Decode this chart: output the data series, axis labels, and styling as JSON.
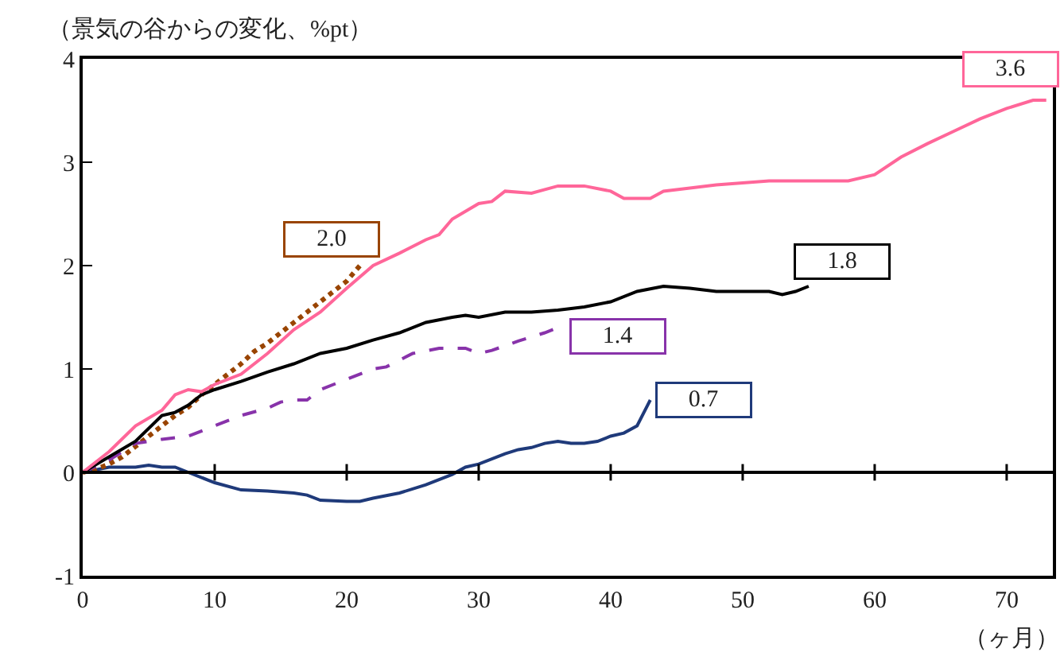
{
  "chart_data": {
    "type": "line",
    "ylabel": "（景気の谷からの変化、%pt）",
    "xlabel": "（ヶ月）",
    "xlim": [
      0,
      73.5
    ],
    "xticks": [
      0,
      10,
      20,
      30,
      40,
      50,
      60,
      70
    ],
    "ylim": [
      -1,
      4
    ],
    "yticks": [
      -1,
      0,
      1,
      2,
      3,
      4
    ],
    "ref_lines": [
      {
        "axis": "y",
        "value": 0,
        "color": "#000000"
      }
    ],
    "series": [
      {
        "color": "#ff6699",
        "line_style": "solid",
        "x": [
          0,
          2,
          4,
          6,
          7,
          8,
          9,
          10,
          12,
          14,
          16,
          18,
          20,
          22,
          24,
          26,
          27,
          28,
          30,
          31,
          32,
          34,
          36,
          38,
          40,
          41,
          43,
          44,
          46,
          48,
          50,
          52,
          54,
          56,
          58,
          60,
          62,
          64,
          66,
          68,
          70,
          72,
          73
        ],
        "values": [
          0,
          0.2,
          0.45,
          0.6,
          0.75,
          0.8,
          0.78,
          0.85,
          0.95,
          1.15,
          1.38,
          1.55,
          1.78,
          2.0,
          2.12,
          2.25,
          2.3,
          2.45,
          2.6,
          2.62,
          2.72,
          2.7,
          2.77,
          2.77,
          2.72,
          2.65,
          2.65,
          2.72,
          2.75,
          2.78,
          2.8,
          2.82,
          2.82,
          2.82,
          2.82,
          2.88,
          3.05,
          3.18,
          3.3,
          3.42,
          3.52,
          3.6,
          3.6
        ]
      },
      {
        "color": "#000000",
        "line_style": "solid",
        "x": [
          0,
          2,
          4,
          6,
          7,
          8,
          9,
          10,
          12,
          14,
          16,
          18,
          20,
          22,
          24,
          26,
          28,
          29,
          30,
          32,
          34,
          36,
          38,
          40,
          42,
          44,
          46,
          48,
          50,
          52,
          53,
          54,
          55
        ],
        "values": [
          0,
          0.15,
          0.3,
          0.55,
          0.58,
          0.65,
          0.75,
          0.8,
          0.88,
          0.97,
          1.05,
          1.15,
          1.2,
          1.28,
          1.35,
          1.45,
          1.5,
          1.52,
          1.5,
          1.55,
          1.55,
          1.57,
          1.6,
          1.65,
          1.75,
          1.8,
          1.78,
          1.75,
          1.75,
          1.75,
          1.72,
          1.75,
          1.8
        ]
      },
      {
        "color": "#8833aa",
        "line_style": "dashed",
        "x": [
          0,
          2,
          4,
          5,
          6,
          8,
          10,
          12,
          14,
          15,
          16,
          17,
          18,
          20,
          22,
          23,
          25,
          27,
          28,
          29,
          30,
          31,
          33,
          35,
          36
        ],
        "values": [
          0,
          0.12,
          0.28,
          0.3,
          0.32,
          0.35,
          0.45,
          0.55,
          0.62,
          0.68,
          0.7,
          0.7,
          0.8,
          0.9,
          1.0,
          1.02,
          1.15,
          1.2,
          1.2,
          1.2,
          1.15,
          1.18,
          1.27,
          1.35,
          1.4
        ]
      },
      {
        "color": "#994400",
        "line_style": "dotted",
        "x": [
          0,
          1,
          2,
          3,
          4,
          5,
          6,
          7,
          8,
          9,
          10,
          11,
          12,
          13,
          14,
          15,
          16,
          17,
          18,
          19,
          20,
          21
        ],
        "values": [
          0,
          0.03,
          0.08,
          0.15,
          0.25,
          0.35,
          0.45,
          0.55,
          0.63,
          0.75,
          0.85,
          0.95,
          1.05,
          1.17,
          1.25,
          1.35,
          1.45,
          1.55,
          1.65,
          1.75,
          1.85,
          2.0
        ]
      },
      {
        "color": "#1f3a7a",
        "line_style": "solid",
        "x": [
          0,
          2,
          4,
          5,
          6,
          7,
          8,
          10,
          12,
          14,
          16,
          17,
          18,
          20,
          21,
          22,
          24,
          26,
          28,
          29,
          30,
          32,
          33,
          34,
          35,
          36,
          37,
          38,
          39,
          40,
          41,
          42,
          43
        ],
        "values": [
          0,
          0.05,
          0.05,
          0.07,
          0.05,
          0.05,
          0,
          -0.1,
          -0.17,
          -0.18,
          -0.2,
          -0.22,
          -0.27,
          -0.28,
          -0.28,
          -0.25,
          -0.2,
          -0.12,
          -0.02,
          0.05,
          0.08,
          0.18,
          0.22,
          0.24,
          0.28,
          0.3,
          0.28,
          0.28,
          0.3,
          0.35,
          0.38,
          0.45,
          0.7
        ]
      }
    ],
    "annotations": [
      {
        "text": "3.6",
        "x": 73,
        "y": 3.6
      },
      {
        "text": "2.0",
        "x": 21,
        "y": 2.0
      },
      {
        "text": "1.8",
        "x": 55,
        "y": 1.8
      },
      {
        "text": "1.4",
        "x": 36,
        "y": 1.4
      },
      {
        "text": "0.7",
        "x": 43,
        "y": 0.7
      }
    ]
  }
}
